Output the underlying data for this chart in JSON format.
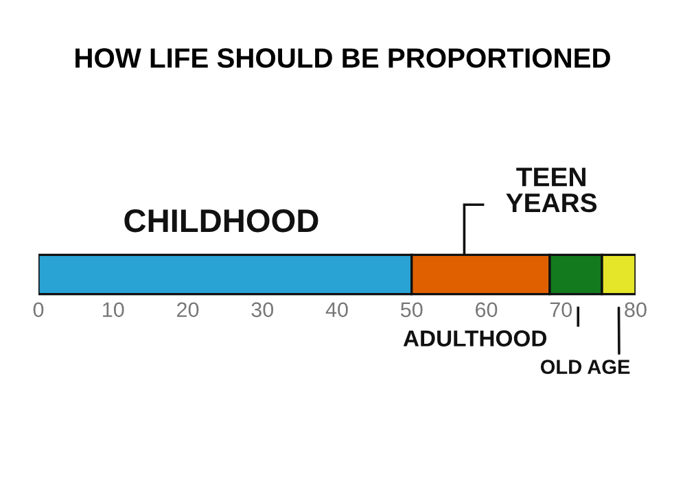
{
  "chart_data": {
    "type": "bar",
    "orientation": "horizontal",
    "stacked": true,
    "title": "HOW LIFE SHOULD BE PROPORTIONED",
    "categories": [
      null
    ],
    "series": [
      {
        "name": "CHILDHOOD",
        "color": "#29a3d3",
        "values": [
          50
        ]
      },
      {
        "name": "TEEN YEARS",
        "color": "#e06000",
        "values": [
          18.5
        ]
      },
      {
        "name": "ADULTHOOD",
        "color": "#137a1e",
        "values": [
          7
        ]
      },
      {
        "name": "OLD AGE",
        "color": "#e5e52a",
        "values": [
          4.5
        ]
      }
    ],
    "xlim": [
      0,
      80
    ],
    "xticks": [
      0,
      10,
      20,
      30,
      40,
      50,
      60,
      70,
      80
    ],
    "grid": false
  }
}
